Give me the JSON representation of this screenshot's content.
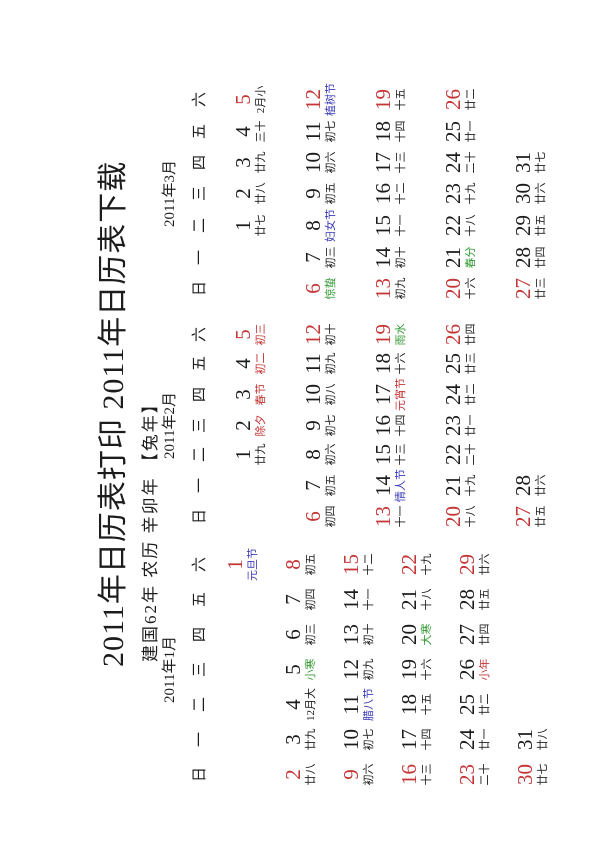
{
  "page": {
    "title": "2011年日历表打印 2011年日历表下载",
    "subtitle": "建国62年 农历 辛卯年 【兔年】",
    "orientation_note": "content rotated 90 degrees counter-clockwise"
  },
  "colors": {
    "ink": "#1c1c1c",
    "red": "#c43535",
    "green": "#339933",
    "blue": "#3a3ab8",
    "background": "#ffffff"
  },
  "weekdays": [
    "日",
    "一",
    "二",
    "三",
    "四",
    "五",
    "六"
  ],
  "months": [
    {
      "label": "2011年1月",
      "weeks": [
        [
          null,
          null,
          null,
          null,
          null,
          null,
          {
            "d": "1",
            "l": "元旦节",
            "dc": "red",
            "lc": "blue"
          }
        ],
        [
          {
            "d": "2",
            "l": "廿八",
            "dc": "red"
          },
          {
            "d": "3",
            "l": "廿九"
          },
          {
            "d": "4",
            "l": "12月大"
          },
          {
            "d": "5",
            "l": "小寒",
            "lc": "green"
          },
          {
            "d": "6",
            "l": "初三"
          },
          {
            "d": "7",
            "l": "初四"
          },
          {
            "d": "8",
            "l": "初五",
            "dc": "red"
          }
        ],
        [
          {
            "d": "9",
            "l": "初六",
            "dc": "red"
          },
          {
            "d": "10",
            "l": "初七"
          },
          {
            "d": "11",
            "l": "腊八节",
            "lc": "blue"
          },
          {
            "d": "12",
            "l": "初九"
          },
          {
            "d": "13",
            "l": "初十"
          },
          {
            "d": "14",
            "l": "十一"
          },
          {
            "d": "15",
            "l": "十二",
            "dc": "red"
          }
        ],
        [
          {
            "d": "16",
            "l": "十三",
            "dc": "red"
          },
          {
            "d": "17",
            "l": "十四"
          },
          {
            "d": "18",
            "l": "十五"
          },
          {
            "d": "19",
            "l": "十六"
          },
          {
            "d": "20",
            "l": "大寒",
            "lc": "green"
          },
          {
            "d": "21",
            "l": "十八"
          },
          {
            "d": "22",
            "l": "十九",
            "dc": "red"
          }
        ],
        [
          {
            "d": "23",
            "l": "二十",
            "dc": "red"
          },
          {
            "d": "24",
            "l": "廿一"
          },
          {
            "d": "25",
            "l": "廿二"
          },
          {
            "d": "26",
            "l": "小年",
            "lc": "red"
          },
          {
            "d": "27",
            "l": "廿四"
          },
          {
            "d": "28",
            "l": "廿五"
          },
          {
            "d": "29",
            "l": "廿六",
            "dc": "red"
          }
        ],
        [
          {
            "d": "30",
            "l": "廿七",
            "dc": "red"
          },
          {
            "d": "31",
            "l": "廿八"
          },
          null,
          null,
          null,
          null,
          null
        ]
      ]
    },
    {
      "label": "2011年2月",
      "weeks": [
        [
          null,
          null,
          {
            "d": "1",
            "l": "廿九"
          },
          {
            "d": "2",
            "l": "除夕",
            "lc": "red"
          },
          {
            "d": "3",
            "l": "春节",
            "lc": "red"
          },
          {
            "d": "4",
            "l": "初二",
            "lc": "red"
          },
          {
            "d": "5",
            "l": "初三",
            "dc": "red",
            "lc": "red"
          }
        ],
        [
          {
            "d": "6",
            "l": "初四",
            "dc": "red"
          },
          {
            "d": "7",
            "l": "初五"
          },
          {
            "d": "8",
            "l": "初六"
          },
          {
            "d": "9",
            "l": "初七"
          },
          {
            "d": "10",
            "l": "初八"
          },
          {
            "d": "11",
            "l": "初九"
          },
          {
            "d": "12",
            "l": "初十",
            "dc": "red"
          }
        ],
        [
          {
            "d": "13",
            "l": "十一",
            "dc": "red"
          },
          {
            "d": "14",
            "l": "情人节",
            "lc": "blue"
          },
          {
            "d": "15",
            "l": "十三"
          },
          {
            "d": "16",
            "l": "十四"
          },
          {
            "d": "17",
            "l": "元宵节",
            "lc": "red"
          },
          {
            "d": "18",
            "l": "十六"
          },
          {
            "d": "19",
            "l": "雨水",
            "dc": "red",
            "lc": "green"
          }
        ],
        [
          {
            "d": "20",
            "l": "十八",
            "dc": "red"
          },
          {
            "d": "21",
            "l": "十九"
          },
          {
            "d": "22",
            "l": "二十"
          },
          {
            "d": "23",
            "l": "廿一"
          },
          {
            "d": "24",
            "l": "廿二"
          },
          {
            "d": "25",
            "l": "廿三"
          },
          {
            "d": "26",
            "l": "廿四",
            "dc": "red"
          }
        ],
        [
          {
            "d": "27",
            "l": "廿五",
            "dc": "red"
          },
          {
            "d": "28",
            "l": "廿六"
          },
          null,
          null,
          null,
          null,
          null
        ]
      ]
    },
    {
      "label": "2011年3月",
      "weeks": [
        [
          null,
          null,
          {
            "d": "1",
            "l": "廿七"
          },
          {
            "d": "2",
            "l": "廿八"
          },
          {
            "d": "3",
            "l": "廿九"
          },
          {
            "d": "4",
            "l": "三十"
          },
          {
            "d": "5",
            "l": "2月小",
            "dc": "red"
          }
        ],
        [
          {
            "d": "6",
            "l": "惊蛰",
            "dc": "red",
            "lc": "green"
          },
          {
            "d": "7",
            "l": "初三"
          },
          {
            "d": "8",
            "l": "妇女节",
            "lc": "blue"
          },
          {
            "d": "9",
            "l": "初五"
          },
          {
            "d": "10",
            "l": "初六"
          },
          {
            "d": "11",
            "l": "初七"
          },
          {
            "d": "12",
            "l": "植树节",
            "dc": "red",
            "lc": "blue"
          }
        ],
        [
          {
            "d": "13",
            "l": "初九",
            "dc": "red"
          },
          {
            "d": "14",
            "l": "初十"
          },
          {
            "d": "15",
            "l": "十一"
          },
          {
            "d": "16",
            "l": "十二"
          },
          {
            "d": "17",
            "l": "十三"
          },
          {
            "d": "18",
            "l": "十四"
          },
          {
            "d": "19",
            "l": "十五",
            "dc": "red"
          }
        ],
        [
          {
            "d": "20",
            "l": "十六",
            "dc": "red"
          },
          {
            "d": "21",
            "l": "春分",
            "lc": "green"
          },
          {
            "d": "22",
            "l": "十八"
          },
          {
            "d": "23",
            "l": "十九"
          },
          {
            "d": "24",
            "l": "二十"
          },
          {
            "d": "25",
            "l": "廿一"
          },
          {
            "d": "26",
            "l": "廿二",
            "dc": "red"
          }
        ],
        [
          {
            "d": "27",
            "l": "廿三",
            "dc": "red"
          },
          {
            "d": "28",
            "l": "廿四"
          },
          {
            "d": "29",
            "l": "廿五"
          },
          {
            "d": "30",
            "l": "廿六"
          },
          {
            "d": "31",
            "l": "廿七"
          }
        ]
      ]
    }
  ]
}
